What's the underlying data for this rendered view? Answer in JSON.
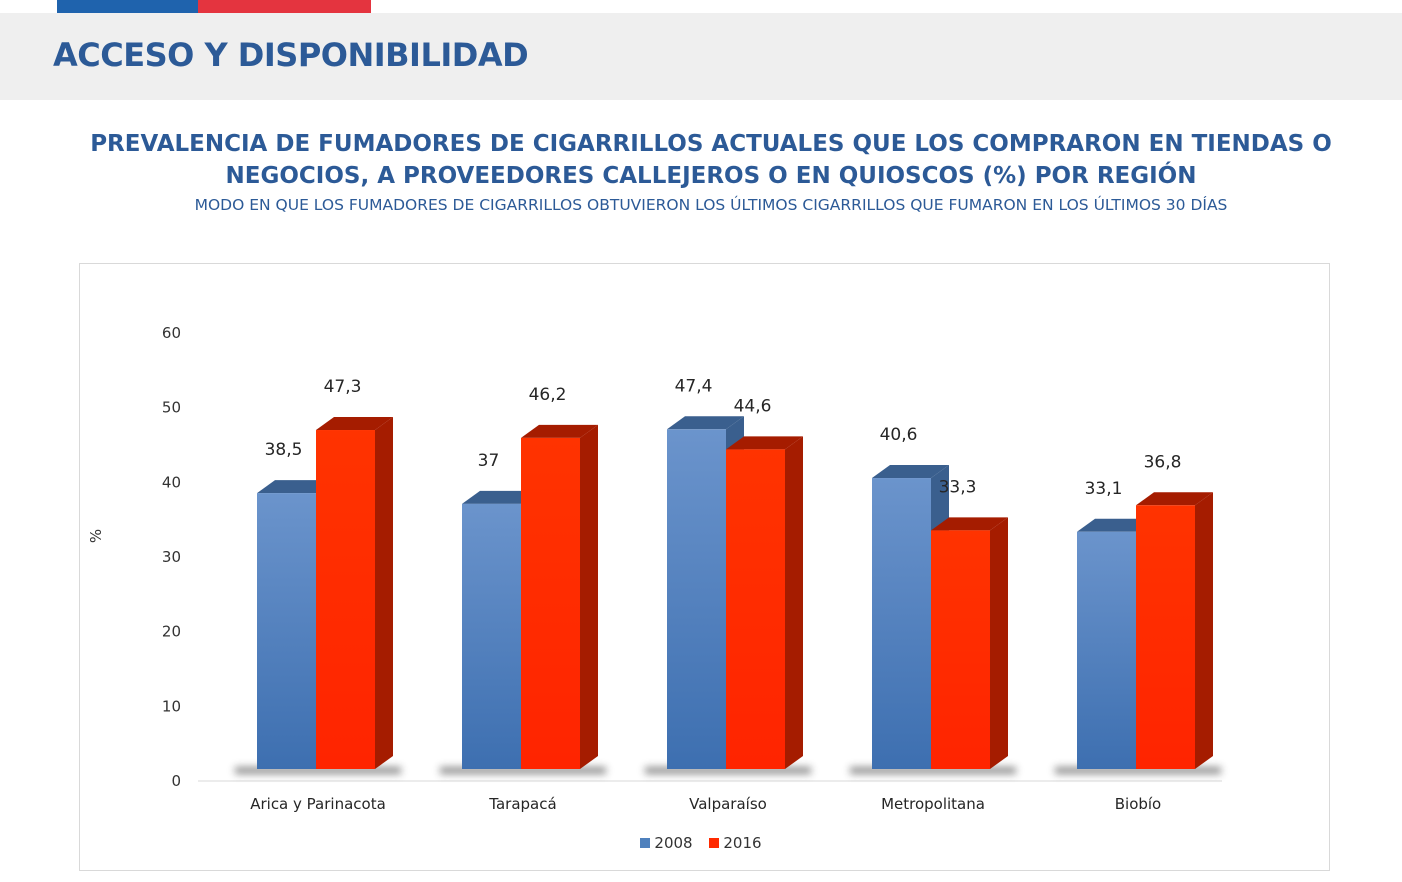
{
  "header": {
    "title": "ACCESO Y DISPONIBILIDAD"
  },
  "chart_data": {
    "type": "bar",
    "title": "PREVALENCIA DE FUMADORES DE CIGARRILLOS ACTUALES QUE LOS COMPRARON EN TIENDAS O NEGOCIOS, A PROVEEDORES CALLEJEROS O EN QUIOSCOS (%) POR REGIÓN",
    "subtitle": "MODO EN QUE LOS FUMADORES DE CIGARRILLOS OBTUVIERON LOS ÚLTIMOS CIGARRILLOS QUE FUMARON EN LOS ÚLTIMOS 30 DÍAS",
    "categories": [
      "Arica y Parinacota",
      "Tarapacá",
      "Valparaíso",
      "Metropolitana",
      "Biobío"
    ],
    "series": [
      {
        "name": "2008",
        "values": [
          38.5,
          37,
          47.4,
          40.6,
          33.1
        ],
        "labels": [
          "38,5",
          "37",
          "47,4",
          "40,6",
          "33,1"
        ],
        "color": "#4f81bd",
        "side_color": "#3a5f8e"
      },
      {
        "name": "2016",
        "values": [
          47.3,
          46.2,
          44.6,
          33.3,
          36.8
        ],
        "labels": [
          "47,3",
          "46,2",
          "44,6",
          "33,3",
          "36,8"
        ],
        "color": "#ff2a00",
        "side_color": "#a51c00"
      }
    ],
    "ylabel": "%",
    "ylim": [
      0,
      60
    ],
    "yticks": [
      0,
      10,
      20,
      30,
      40,
      50,
      60
    ],
    "legend_position": "bottom",
    "grid": false
  }
}
